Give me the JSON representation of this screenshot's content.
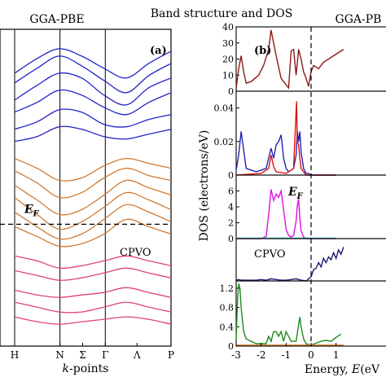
{
  "figure": {
    "title": "Band structure and DOS",
    "left_panel_title": "GGA-PBE",
    "right_panel_title": "GGA-PB"
  },
  "chart_data": [
    {
      "type": "line",
      "panel_label": "(a)",
      "xlabel_italic": "k",
      "xlabel_rest": "-points",
      "ylabel": "",
      "k_labels": [
        "H",
        "N",
        "Σ",
        "Γ",
        "Λ",
        "P"
      ],
      "k_positions": [
        0,
        1,
        1.5,
        2,
        2.7,
        3.45
      ],
      "high_symmetry_lines": [
        0,
        1,
        2
      ],
      "fermi_label": "E",
      "fermi_subscript": "F",
      "compound_label": "CPVO",
      "ylim": [
        -5,
        8
      ],
      "fermi_level": 0,
      "series": [
        {
          "color": "#2323c8",
          "values": [
            [
              6.2,
              6.8,
              7.2,
              6.9,
              6.4,
              6.0,
              6.6,
              7.1
            ],
            [
              5.8,
              6.4,
              6.9,
              6.5,
              5.9,
              5.4,
              6.1,
              6.6
            ],
            [
              5.1,
              5.7,
              6.2,
              6.0,
              5.3,
              4.9,
              5.6,
              6.0
            ],
            [
              4.6,
              5.0,
              5.5,
              5.3,
              4.8,
              4.5,
              5.0,
              5.4
            ],
            [
              3.9,
              4.2,
              4.7,
              4.6,
              4.1,
              4.0,
              4.3,
              4.5
            ],
            [
              3.4,
              3.6,
              4.0,
              3.9,
              3.6,
              3.5,
              3.7,
              3.9
            ]
          ]
        },
        {
          "color": "#d07a30",
          "values": [
            [
              2.7,
              2.3,
              1.8,
              1.9,
              2.4,
              2.7,
              2.5,
              2.3
            ],
            [
              2.2,
              1.7,
              1.1,
              1.3,
              1.9,
              2.3,
              2.0,
              1.8
            ],
            [
              1.6,
              1.0,
              0.4,
              0.6,
              1.2,
              1.8,
              1.5,
              1.2
            ],
            [
              1.1,
              0.4,
              -0.2,
              0.1,
              0.7,
              1.3,
              1.0,
              0.6
            ],
            [
              0.5,
              -0.1,
              -0.6,
              -0.4,
              0.2,
              0.8,
              0.5,
              0.1
            ],
            [
              -0.1,
              -0.5,
              -0.9,
              -0.8,
              -0.4,
              0.2,
              -0.1,
              -0.4
            ]
          ]
        },
        {
          "color": "#e0407c",
          "values": [
            [
              -1.3,
              -1.5,
              -1.8,
              -1.7,
              -1.5,
              -1.3,
              -1.5,
              -1.7
            ],
            [
              -1.9,
              -2.1,
              -2.3,
              -2.2,
              -2.0,
              -1.8,
              -2.0,
              -2.2
            ],
            [
              -2.7,
              -2.9,
              -3.0,
              -2.9,
              -2.8,
              -2.6,
              -2.8,
              -3.0
            ],
            [
              -3.2,
              -3.4,
              -3.6,
              -3.6,
              -3.4,
              -3.2,
              -3.4,
              -3.6
            ],
            [
              -3.8,
              -4.0,
              -4.1,
              -4.0,
              -3.9,
              -3.8,
              -3.9,
              -4.1
            ]
          ]
        }
      ]
    },
    {
      "type": "line",
      "panel_label": "(b)",
      "xlabel_text": "Energy, ",
      "xlabel_italic": "E",
      "xlabel_unit": "(eV",
      "ylabel": "DOS (electrons/eV)",
      "fermi_label": "E",
      "fermi_subscript": "F",
      "compound_label": "CPVO",
      "x_ticks": [
        -3,
        -2,
        -1,
        0,
        1
      ],
      "xlim": [
        -3,
        3
      ],
      "fermi_level": 0,
      "panels": [
        {
          "ylim": [
            0,
            40
          ],
          "yticks": [
            0,
            10,
            20,
            30,
            40
          ],
          "series": [
            {
              "color": "#8b1a1a",
              "x": [
                -3.0,
                -2.9,
                -2.8,
                -2.7,
                -2.6,
                -2.4,
                -2.1,
                -1.9,
                -1.7,
                -1.6,
                -1.5,
                -1.4,
                -1.2,
                -1.0,
                -0.9,
                -0.8,
                -0.7,
                -0.6,
                -0.5,
                -0.4,
                -0.3,
                -0.2,
                -0.1,
                0.0,
                0.1,
                0.3,
                0.5,
                0.7,
                0.9,
                1.1,
                1.3
              ],
              "values": [
                2,
                14,
                22,
                12,
                5,
                6,
                10,
                16,
                26,
                38,
                30,
                22,
                8,
                4,
                2,
                25,
                26,
                10,
                26,
                20,
                12,
                8,
                3,
                12,
                16,
                14,
                18,
                20,
                22,
                24,
                26
              ]
            }
          ]
        },
        {
          "ylim": [
            0,
            0.05
          ],
          "yticks": [
            0,
            0.02,
            0.04
          ],
          "series": [
            {
              "color": "#2323b0",
              "x": [
                -3.0,
                -2.9,
                -2.8,
                -2.7,
                -2.6,
                -2.2,
                -1.8,
                -1.6,
                -1.5,
                -1.4,
                -1.3,
                -1.2,
                -1.1,
                -1.0,
                -0.9,
                -0.8,
                -0.7,
                -0.6,
                -0.55,
                -0.5,
                -0.45,
                -0.4,
                -0.3,
                -0.2,
                -0.1,
                0.0,
                0.5,
                1.0
              ],
              "values": [
                0.003,
                0.012,
                0.026,
                0.015,
                0.004,
                0.002,
                0.004,
                0.016,
                0.01,
                0.018,
                0.02,
                0.024,
                0.01,
                0.004,
                0.002,
                0.003,
                0.004,
                0.012,
                0.026,
                0.02,
                0.026,
                0.014,
                0.004,
                0.001,
                0.001,
                0.0,
                0.0,
                0.0
              ]
            },
            {
              "color": "#e01010",
              "x": [
                -3.0,
                -2.0,
                -1.7,
                -1.6,
                -1.5,
                -1.4,
                -1.0,
                -0.7,
                -0.6,
                -0.58,
                -0.55,
                -0.5,
                -0.45,
                -0.4,
                -0.2,
                0.0,
                1.0
              ],
              "values": [
                0.0,
                0.001,
                0.004,
                0.012,
                0.005,
                0.002,
                0.001,
                0.004,
                0.038,
                0.044,
                0.02,
                0.018,
                0.01,
                0.004,
                0.0,
                0.0,
                0.0
              ]
            }
          ]
        },
        {
          "ylim": [
            0,
            8
          ],
          "yticks": [
            0,
            2,
            4,
            6
          ],
          "series": [
            {
              "color": "#e010e0",
              "x": [
                -3.0,
                -2.0,
                -1.8,
                -1.7,
                -1.6,
                -1.5,
                -1.4,
                -1.3,
                -1.2,
                -1.1,
                -1.0,
                -0.9,
                -0.8,
                -0.7,
                -0.6,
                -0.55,
                -0.5,
                -0.45,
                -0.4,
                -0.3,
                -0.2,
                0.0,
                1.0
              ],
              "values": [
                0.0,
                0.0,
                0.3,
                3.0,
                6.2,
                4.8,
                5.6,
                5.2,
                6.0,
                3.6,
                1.2,
                0.4,
                0.2,
                0.4,
                2.2,
                4.2,
                5.0,
                2.6,
                1.0,
                0.2,
                0.0,
                0.0,
                0.0
              ]
            },
            {
              "color": "#2ab0b0",
              "x": [
                -3.0,
                1.0
              ],
              "values": [
                0.05,
                0.05
              ]
            }
          ]
        },
        {
          "ylim": [
            0,
            6
          ],
          "yticks": [],
          "series": [
            {
              "color": "#1a1a70",
              "x": [
                -3.0,
                -2.9,
                -2.8,
                -2.6,
                -2.2,
                -2.0,
                -1.8,
                -1.6,
                -1.4,
                -1.2,
                -1.0,
                -0.8,
                -0.6,
                -0.4,
                -0.2,
                0.0,
                0.1,
                0.2,
                0.3,
                0.4,
                0.5,
                0.6,
                0.7,
                0.8,
                0.9,
                1.0,
                1.1,
                1.2,
                1.3
              ],
              "values": [
                0.1,
                0.2,
                0.1,
                0.1,
                0.1,
                0.2,
                0.1,
                0.3,
                0.2,
                0.1,
                0.1,
                0.2,
                0.3,
                0.1,
                0.0,
                0.6,
                1.6,
                1.8,
                2.6,
                2.0,
                3.2,
                2.6,
                3.4,
                3.0,
                4.0,
                3.2,
                4.4,
                3.8,
                4.8
              ]
            }
          ]
        },
        {
          "ylim": [
            0,
            1.35
          ],
          "yticks": [
            0,
            0.4,
            0.8,
            1.2
          ],
          "series": [
            {
              "color": "#1e8a1e",
              "x": [
                -3.0,
                -2.95,
                -2.9,
                -2.85,
                -2.8,
                -2.7,
                -2.6,
                -2.4,
                -2.2,
                -2.0,
                -1.9,
                -1.8,
                -1.7,
                -1.6,
                -1.5,
                -1.4,
                -1.3,
                -1.2,
                -1.1,
                -1.0,
                -0.9,
                -0.8,
                -0.6,
                -0.5,
                -0.45,
                -0.4,
                -0.3,
                -0.2,
                -0.1,
                0.0,
                0.2,
                0.4,
                0.6,
                0.8,
                1.0,
                1.2
              ],
              "values": [
                0.1,
                0.9,
                1.3,
                1.2,
                0.8,
                0.3,
                0.15,
                0.1,
                0.05,
                0.05,
                0.05,
                0.05,
                0.2,
                0.1,
                0.3,
                0.3,
                0.2,
                0.3,
                0.1,
                0.3,
                0.2,
                0.1,
                0.1,
                0.45,
                0.6,
                0.4,
                0.15,
                0.05,
                0.03,
                0.02,
                0.06,
                0.1,
                0.12,
                0.1,
                0.18,
                0.25
              ]
            },
            {
              "color": "#d07a30",
              "x": [
                -3.0,
                1.3
              ],
              "values": [
                0.02,
                0.02
              ]
            }
          ]
        }
      ]
    }
  ]
}
